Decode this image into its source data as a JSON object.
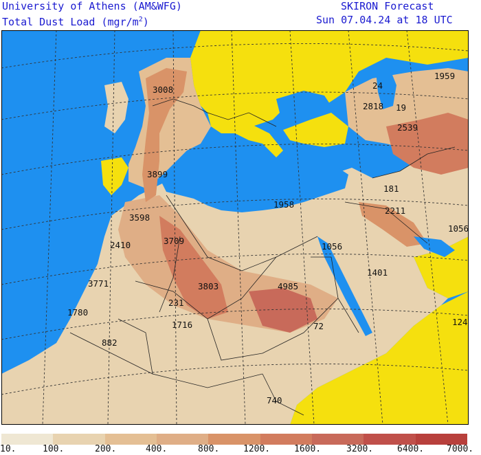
{
  "header": {
    "institution": "University of Athens (AM&WFG)",
    "product_prefix": "Total Dust Load (mgr/m",
    "product_sup": "2",
    "product_suffix": ")",
    "model": "SKIRON Forecast",
    "valid_time": "Sun 07.04.24 at 18 UTC"
  },
  "colors": {
    "sea": "#1e90f0",
    "low_land": "#f5e00e",
    "text": "#1a1ad0",
    "border": "#222222",
    "grid": "#333333"
  },
  "legend": {
    "colors": [
      "#efe7d3",
      "#e8d3b0",
      "#e4bf94",
      "#dfae86",
      "#d99368",
      "#d27c5e",
      "#c86a5a",
      "#c0504a",
      "#b8403c"
    ],
    "ticks": [
      "10.",
      "100.",
      "200.",
      "400.",
      "800.",
      "1200.",
      "1600.",
      "3200.",
      "6400.",
      "7000."
    ]
  },
  "map_labels": [
    "3008",
    "1959",
    "24",
    "2818",
    "19",
    "2539",
    "3899",
    "181",
    "1958",
    "2211",
    "3598",
    "1056",
    "2410",
    "3709",
    "1056",
    "1401",
    "3771",
    "3803",
    "4985",
    "231",
    "1780",
    "1716",
    "72",
    "124",
    "882",
    "740"
  ]
}
